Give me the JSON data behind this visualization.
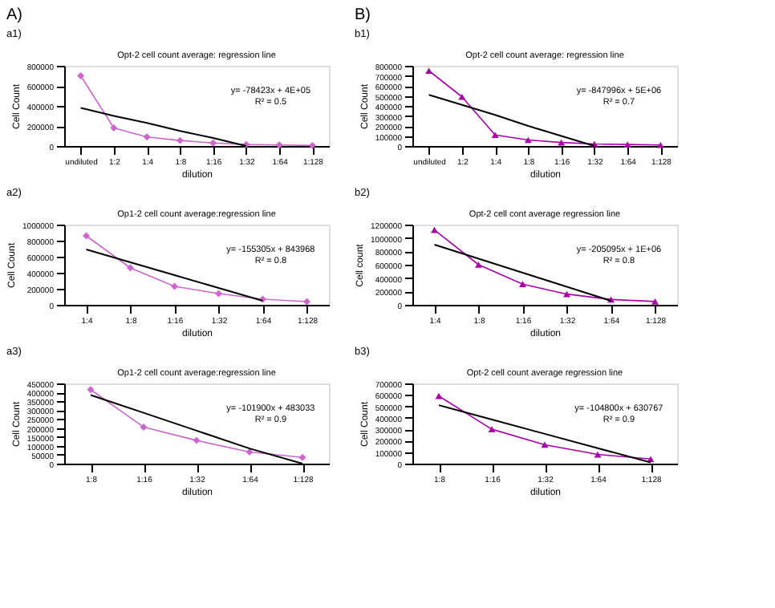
{
  "chart_data": [
    {
      "type": "line",
      "title": "Opt-2 cell count average: regression line",
      "xlabel": "dilution",
      "ylabel": "Cell Count",
      "categories": [
        "undiluted",
        "1:2",
        "1:4",
        "1:8",
        "1:16",
        "1:32",
        "1:64",
        "1:128"
      ],
      "ylim": [
        0,
        800000
      ],
      "yticks": [
        0,
        200000,
        400000,
        600000,
        800000
      ],
      "marker": "diamond",
      "series": [
        {
          "color": "#cc66cc",
          "values": [
            700000,
            180000,
            90000,
            55000,
            30000,
            15000,
            10000,
            5000
          ]
        },
        {
          "type": "line",
          "marker": "none",
          "color": "#000000",
          "values": [
            380000,
            300000,
            230000,
            150000,
            80000,
            0,
            null,
            null
          ]
        }
      ],
      "annotations": [
        "A)",
        "a1)",
        "y= -78423x + 4E+05",
        "R² = 0.5"
      ]
    },
    {
      "type": "line",
      "title": "Op1-2 cell count average:regression line",
      "xlabel": "dilution",
      "ylabel": "Cell Count",
      "categories": [
        "1:4",
        "1:8",
        "1:16",
        "1:32",
        "1:64",
        "1:128"
      ],
      "ylim": [
        0,
        1000000
      ],
      "yticks": [
        0,
        200000,
        400000,
        600000,
        800000,
        1000000
      ],
      "marker": "diamond",
      "series": [
        {
          "color": "#cc66cc",
          "values": [
            860000,
            460000,
            230000,
            140000,
            70000,
            40000
          ]
        },
        {
          "type": "line",
          "marker": "none",
          "color": "#000000",
          "values": [
            690000,
            530000,
            370000,
            210000,
            50000,
            null
          ]
        }
      ],
      "annotations": [
        "a2)",
        "y= -155305x + 843968",
        "R² = 0.8"
      ]
    },
    {
      "type": "line",
      "title": "Op1-2 cell count average:regression line",
      "xlabel": "dilution",
      "ylabel": "Cell Count",
      "categories": [
        "1:8",
        "1:16",
        "1:32",
        "1:64",
        "1:128"
      ],
      "ylim": [
        0,
        450000
      ],
      "yticks": [
        0,
        50000,
        100000,
        150000,
        200000,
        250000,
        300000,
        350000,
        400000,
        450000
      ],
      "marker": "diamond",
      "series": [
        {
          "color": "#cc66cc",
          "values": [
            415000,
            205000,
            130000,
            65000,
            35000
          ]
        },
        {
          "type": "line",
          "marker": "none",
          "color": "#000000",
          "values": [
            385000,
            285000,
            185000,
            85000,
            0
          ]
        }
      ],
      "annotations": [
        "a3)",
        "y= -101900x + 483033",
        "R² = 0.9"
      ]
    },
    {
      "type": "line",
      "title": "Opt-2 cell count average: regression line",
      "xlabel": "dilution",
      "ylabel": "Cell Count",
      "categories": [
        "undiluted",
        "1:2",
        "1:4",
        "1:8",
        "1:16",
        "1:32",
        "1:64",
        "1:128"
      ],
      "ylim": [
        0,
        800000
      ],
      "yticks": [
        0,
        100000,
        200000,
        300000,
        400000,
        500000,
        600000,
        700000,
        800000
      ],
      "marker": "triangle",
      "series": [
        {
          "color": "#aa00aa",
          "values": [
            750000,
            490000,
            110000,
            60000,
            35000,
            20000,
            15000,
            10000
          ]
        },
        {
          "type": "line",
          "marker": "none",
          "color": "#000000",
          "values": [
            510000,
            410000,
            310000,
            200000,
            100000,
            0,
            null,
            null
          ]
        }
      ],
      "annotations": [
        "B)",
        "b1)",
        "y= -847996x + 5E+06",
        "R² = 0.7"
      ]
    },
    {
      "type": "line",
      "title": "Opt-2 cell cont average regression line",
      "xlabel": "dilution",
      "ylabel": "Cell count",
      "categories": [
        "1:4",
        "1:8",
        "1:16",
        "1:32",
        "1:64",
        "1:128"
      ],
      "ylim": [
        0,
        1200000
      ],
      "yticks": [
        0,
        200000,
        400000,
        600000,
        800000,
        1000000,
        1200000
      ],
      "marker": "triangle",
      "series": [
        {
          "color": "#aa00aa",
          "values": [
            1120000,
            600000,
            310000,
            160000,
            80000,
            50000
          ]
        },
        {
          "type": "line",
          "marker": "none",
          "color": "#000000",
          "values": [
            900000,
            690000,
            480000,
            270000,
            60000,
            null
          ]
        }
      ],
      "annotations": [
        "b2)",
        "y= -205095x + 1E+06",
        "R² = 0.8"
      ]
    },
    {
      "type": "line",
      "title": "Opt-2 cell count average regression line",
      "xlabel": "dilution",
      "ylabel": "Cell Count",
      "categories": [
        "1:8",
        "1:16",
        "1:32",
        "1:64",
        "1:128"
      ],
      "ylim": [
        0,
        700000
      ],
      "yticks": [
        0,
        100000,
        200000,
        300000,
        400000,
        500000,
        600000,
        700000
      ],
      "marker": "triangle",
      "series": [
        {
          "color": "#aa00aa",
          "values": [
            590000,
            300000,
            165000,
            80000,
            40000
          ]
        },
        {
          "type": "line",
          "marker": "none",
          "color": "#000000",
          "values": [
            510000,
            385000,
            260000,
            135000,
            10000
          ]
        }
      ],
      "annotations": [
        "b3)",
        "y= -104800x + 630767",
        "R² = 0.9"
      ]
    }
  ]
}
